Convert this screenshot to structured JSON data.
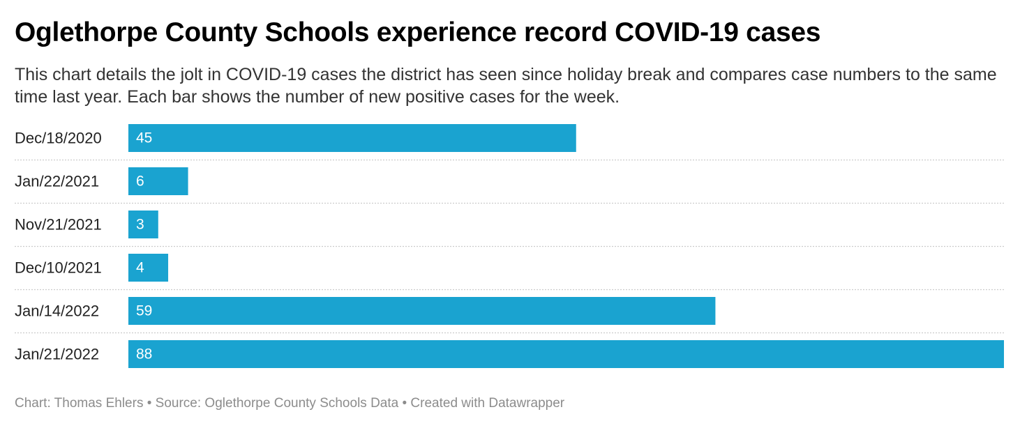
{
  "title": "Oglethorpe County Schools experience record COVID-19 cases",
  "subtitle": "This chart details the jolt in COVID-19 cases the district has seen since holiday break and compares case numbers to the same time last year. Each bar shows the number of new positive cases for the week.",
  "footer": {
    "chart_credit": "Chart: Thomas Ehlers",
    "separator": "•",
    "source": "Source: Oglethorpe County Schools Data",
    "created_with": "Created with Datawrapper"
  },
  "colors": {
    "bar": "#1aa3d0",
    "bar_label": "#ffffff",
    "grid": "#cccccc"
  },
  "chart_data": {
    "type": "bar",
    "orientation": "horizontal",
    "categories": [
      "Dec/18/2020",
      "Jan/22/2021",
      "Nov/21/2021",
      "Dec/10/2021",
      "Jan/14/2022",
      "Jan/21/2022"
    ],
    "values": [
      45,
      6,
      3,
      4,
      59,
      88
    ],
    "xlim": [
      0,
      88
    ],
    "value_labels": "inside-left",
    "grid": "dotted-row-separators"
  }
}
